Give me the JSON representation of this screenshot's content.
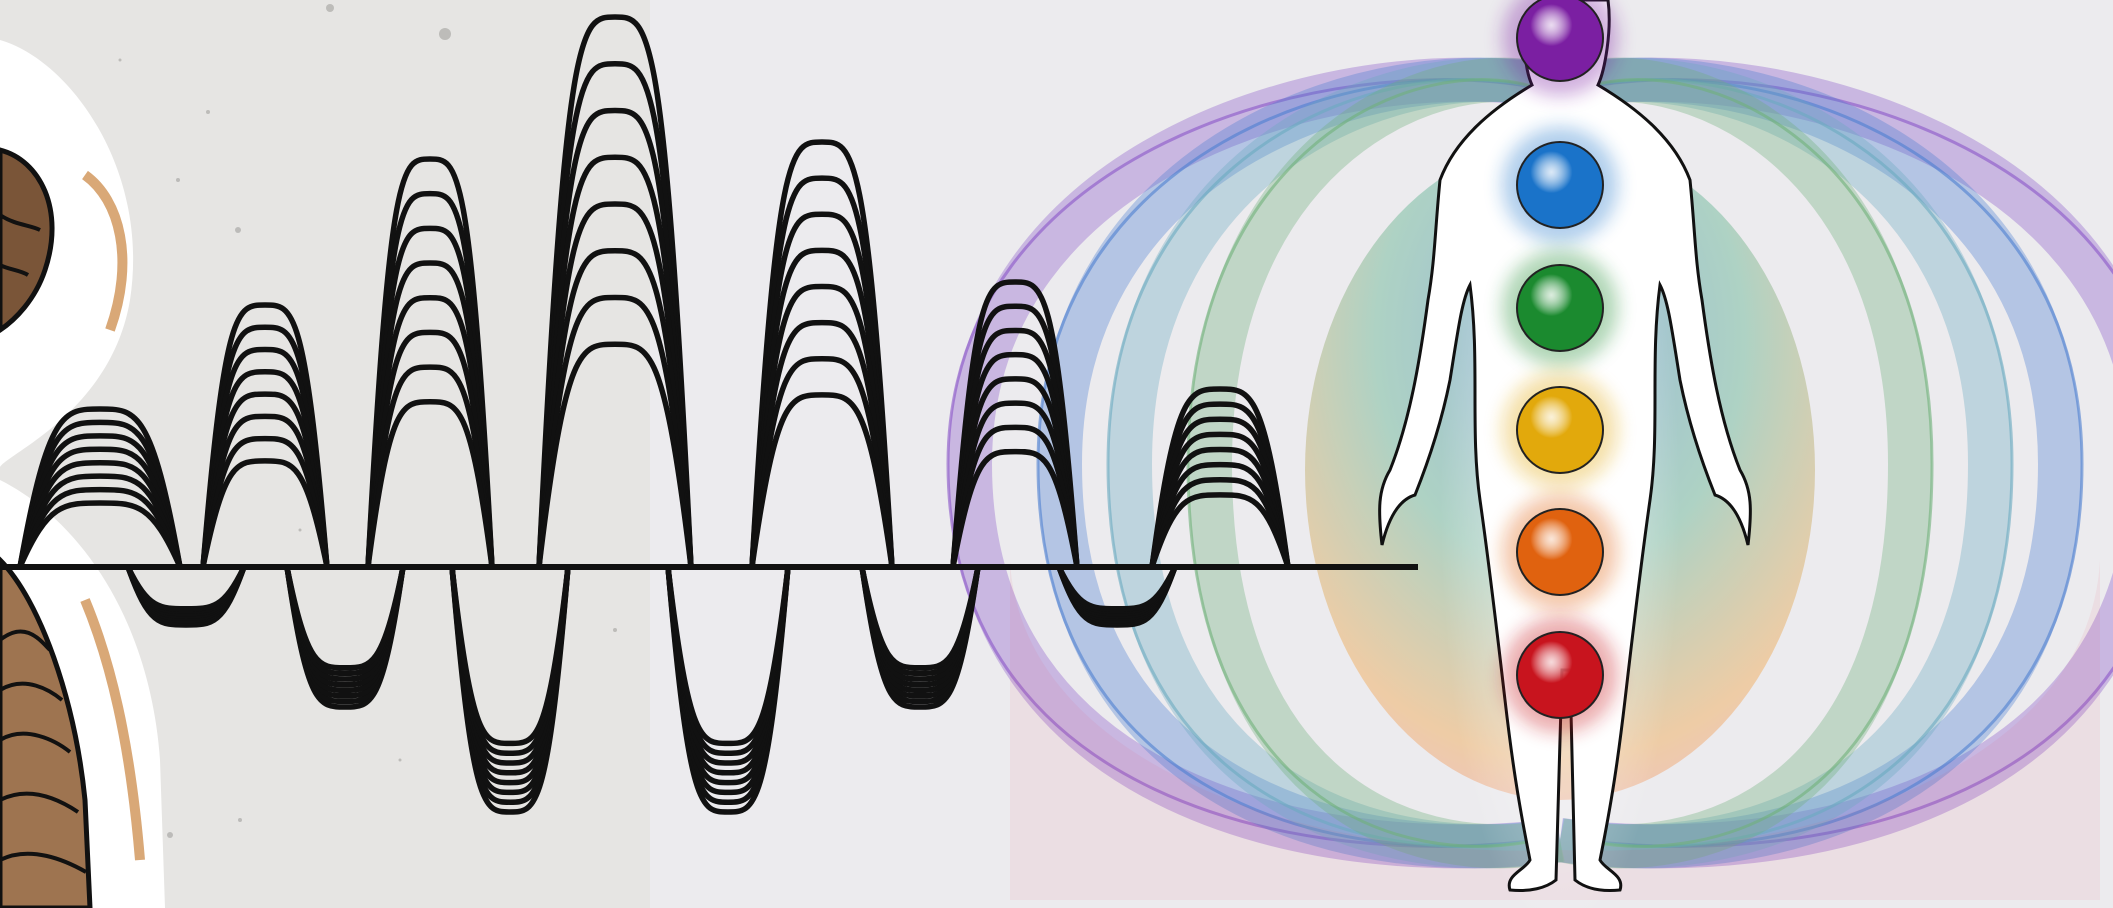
{
  "scene": {
    "description_items": [
      "paper-panel",
      "wood-decoration",
      "wave-bundle",
      "aura-field",
      "human-silhouette",
      "chakra-column"
    ]
  },
  "colors": {
    "paper": "#e7e6e4",
    "background": "#ecebee",
    "wave": "#111111",
    "wood_dark": "#7a5538",
    "wood_light": "#a47a52",
    "wood_tan": "#d9a877",
    "chakras": [
      "#7b1fa2",
      "#1a73c9",
      "#1b8a2f",
      "#e2a90c",
      "#e0620f",
      "#c8141e"
    ],
    "aura": [
      "#8a55c8",
      "#4d7fd0",
      "#6aaac0",
      "#6fb07a",
      "#e8a23a",
      "#e24a6a"
    ]
  },
  "chakras": [
    {
      "name": "crown",
      "color": "#7b1fa2"
    },
    {
      "name": "throat",
      "color": "#1a73c9"
    },
    {
      "name": "heart",
      "color": "#1b8a2f"
    },
    {
      "name": "solar-plexus",
      "color": "#e2a90c"
    },
    {
      "name": "sacral",
      "color": "#e0620f"
    },
    {
      "name": "root",
      "color": "#c8141e"
    }
  ],
  "icons": [
    "wave-bundle-icon",
    "human-silhouette-icon",
    "chakra-orb-icon"
  ]
}
